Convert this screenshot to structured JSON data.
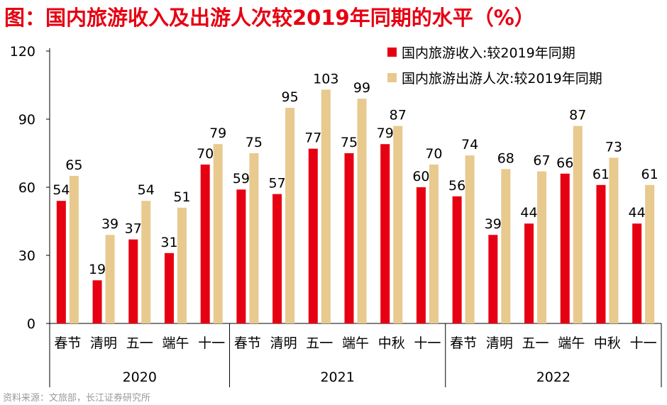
{
  "title": "图：国内旅游收入及出游人次较2019年同期的水平（%）",
  "source": "资料来源：文旅部，长江证券研究所",
  "colors": {
    "series1": "#e60012",
    "series2": "#e8c98e",
    "title": "#e60012"
  },
  "chart_data": {
    "type": "bar",
    "title": "图：国内旅游收入及出游人次较2019年同期的水平（%）",
    "categories": [
      "春节",
      "清明",
      "五一",
      "端午",
      "十一",
      "春节",
      "清明",
      "五一",
      "端午",
      "中秋",
      "十一",
      "春节",
      "清明",
      "五一",
      "端午",
      "中秋",
      "十一"
    ],
    "groups": [
      {
        "label": "2020",
        "count": 5
      },
      {
        "label": "2021",
        "count": 6
      },
      {
        "label": "2022",
        "count": 6
      }
    ],
    "series": [
      {
        "name": "国内旅游收入:较2019年同期",
        "values": [
          54,
          19,
          37,
          31,
          70,
          59,
          57,
          77,
          75,
          79,
          60,
          56,
          39,
          44,
          66,
          61,
          44
        ]
      },
      {
        "name": "国内旅游出游人次:较2019年同期",
        "values": [
          65,
          39,
          54,
          51,
          79,
          75,
          95,
          103,
          99,
          87,
          70,
          74,
          68,
          67,
          87,
          73,
          61
        ]
      }
    ],
    "yticks": [
      0,
      30,
      60,
      90,
      120
    ],
    "ylim": [
      0,
      120
    ],
    "xlabel": "",
    "ylabel": "",
    "legend": "top-right"
  }
}
